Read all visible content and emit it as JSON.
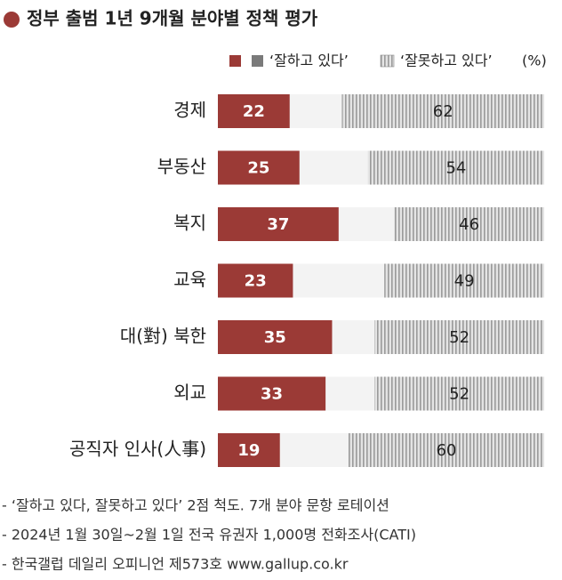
{
  "chart_data": {
    "type": "stacked-diverging-bar",
    "title": "정부 출범 1년 9개월 분야별 정책 평가",
    "unit": "(%)",
    "categories": [
      "경제",
      "부동산",
      "복지",
      "교육",
      "대(對) 북한",
      "외교",
      "공직자 인사(人事)"
    ],
    "series": [
      {
        "name": "‘잘하고 있다’",
        "color": "#9b3a36",
        "values": [
          22,
          25,
          37,
          23,
          35,
          33,
          19
        ]
      },
      {
        "name": "‘잘못하고 있다’",
        "color": "#8c8c8c",
        "values": [
          62,
          54,
          46,
          49,
          52,
          52,
          60
        ]
      }
    ],
    "xlim": [
      0,
      100
    ],
    "notes": [
      "- ‘잘하고 있다, 잘못하고 있다’ 2점 척도. 7개 분야 문항 로테이션",
      "- 2024년 1월 30일~2월 1일 전국 유권자 1,000명 전화조사(CATI)",
      "- 한국갤럽 데일리 오피니언 제573호 www.gallup.co.kr"
    ]
  }
}
